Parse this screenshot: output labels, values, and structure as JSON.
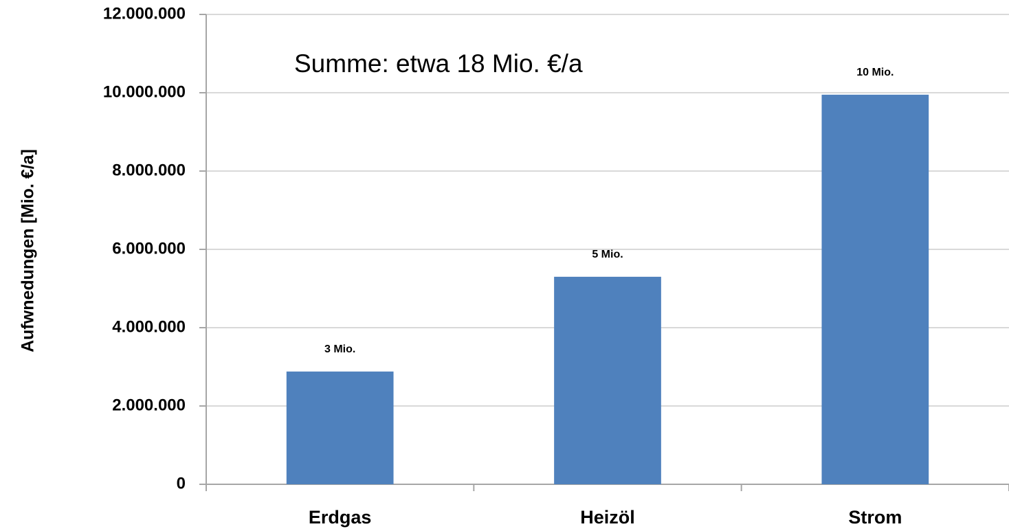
{
  "chart_data": {
    "type": "bar",
    "annotation": "Summe: etwa 18 Mio. €/a",
    "y_label": "Aufwnedungen [Mio. €/a]",
    "categories": [
      "Erdgas",
      "Heizöl",
      "Strom"
    ],
    "values": [
      2880000,
      5300000,
      9950000
    ],
    "value_labels": [
      "3 Mio.",
      "5 Mio.",
      "10 Mio."
    ],
    "color": "#4f81bd",
    "ylim": [
      0,
      12000000
    ],
    "yticks": [
      0,
      {
        "value": 2000000,
        "label": "2.000.000"
      },
      {
        "value": 4000000,
        "label": "4.000.000"
      },
      {
        "value": 6000000,
        "label": "6.000.000"
      },
      {
        "value": 8000000,
        "label": "8.000.000"
      },
      {
        "value": 10000000,
        "label": "10.000.000"
      },
      {
        "value": 12000000,
        "label": "12.000.000"
      }
    ],
    "grid": true
  }
}
